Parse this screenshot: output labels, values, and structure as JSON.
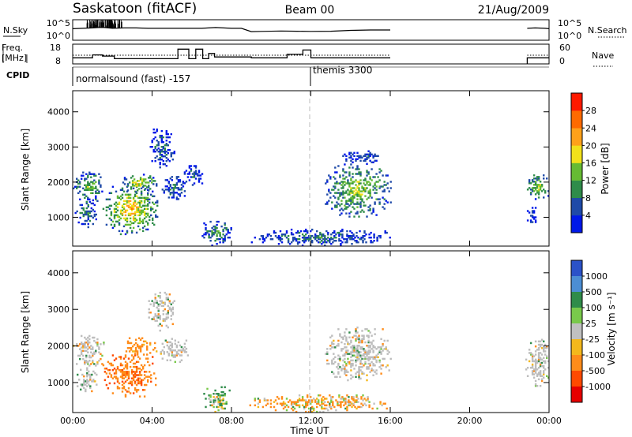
{
  "header": {
    "title": "Saskatoon (fitACF)",
    "beam": "Beam 00",
    "date": "21/Aug/2009"
  },
  "colors": {
    "power_scale": [
      "#0018e8",
      "#1f4aa8",
      "#2f8c4a",
      "#66bb33",
      "#f2e11b",
      "#ffa11a",
      "#ff6a00",
      "#ff1a00"
    ],
    "velocity_scale": [
      "#2b52c8",
      "#4c8ed4",
      "#2f8c4a",
      "#79c94b",
      "#c0c0c0",
      "#f4b81c",
      "#ff8c1a",
      "#ff4a00",
      "#e60000"
    ],
    "ground_scatter": "#bdbdbd"
  },
  "chart_data": [
    {
      "type": "line",
      "panel": "noise",
      "left_label": "N.Sky",
      "left_ticks": [
        "10^5",
        "10^0"
      ],
      "right_label": "N.Search",
      "right_ticks": [
        "10^5",
        "10^0"
      ],
      "xlim": [
        0,
        24
      ],
      "series": [
        {
          "line": "solid",
          "x": [
            0,
            0.5,
            1.0,
            1.5,
            2.0,
            2.6,
            3.2,
            3.8,
            4.4,
            5.0,
            6.0,
            6.5,
            7.2,
            8.0,
            8.5,
            9.0,
            9.5,
            10.5,
            11.3,
            12.0,
            13.0,
            14.0,
            15.0,
            16.0
          ],
          "y": [
            0.56,
            0.58,
            0.6,
            0.63,
            0.58,
            0.6,
            0.6,
            0.58,
            0.58,
            0.58,
            0.58,
            0.58,
            0.62,
            0.58,
            0.58,
            0.42,
            0.43,
            0.45,
            0.44,
            0.43,
            0.44,
            0.48,
            0.5,
            0.5
          ]
        },
        {
          "line": "solid",
          "x": [
            22.9,
            23.3,
            23.8,
            24.0
          ],
          "y": [
            0.58,
            0.6,
            0.58,
            0.56
          ]
        }
      ]
    },
    {
      "type": "line",
      "panel": "frequency",
      "left_label": "Freq. [MHz]",
      "left_ticks": [
        "18",
        "8"
      ],
      "right_label": "Nave",
      "right_ticks": [
        "60",
        "0"
      ],
      "xlim": [
        0,
        24
      ],
      "series": [
        {
          "line": "solid",
          "x": [
            0,
            1.0,
            1.0,
            1.5,
            1.5,
            2.1,
            2.1,
            5.3,
            5.3,
            5.85,
            5.85,
            6.2,
            6.2,
            6.55,
            6.55,
            6.85,
            6.85,
            7.15,
            7.15,
            9.0,
            9.0,
            10.8,
            10.8,
            11.6,
            11.6,
            12.0,
            12.0,
            16.0
          ],
          "y": [
            11.5,
            11.5,
            13.2,
            13.2,
            12.5,
            12.5,
            11.0,
            11.0,
            16.5,
            16.5,
            11.0,
            11.0,
            16.5,
            16.5,
            11.0,
            11.0,
            14.0,
            14.0,
            12.0,
            12.0,
            11.5,
            11.5,
            13.5,
            13.5,
            16.0,
            16.0,
            11.5,
            11.5
          ]
        },
        {
          "line": "solid",
          "x": [
            22.9,
            22.9,
            23.6,
            24.0
          ],
          "y": [
            8,
            11.5,
            11.5,
            11.5
          ]
        },
        {
          "line": "dotted",
          "x": [
            0,
            16.0
          ],
          "y": [
            13.0,
            13.0
          ]
        },
        {
          "line": "dotted",
          "x": [
            22.9,
            24.0
          ],
          "y": [
            13.0,
            13.0
          ]
        }
      ]
    },
    {
      "type": "table",
      "panel": "cpid",
      "label": "CPID",
      "segments": [
        {
          "start": 0,
          "end": 12,
          "label": "normalsound (fast) -157"
        },
        {
          "start": 12,
          "end": 24,
          "label": "themis 3300"
        }
      ]
    },
    {
      "type": "heatmap",
      "panel": "power",
      "ylabel": "Slant Range [km]",
      "ylim": [
        180,
        4600
      ],
      "yticks": [
        1000,
        2000,
        3000,
        4000
      ],
      "xlim": [
        0,
        24
      ],
      "colorbar": {
        "label": "Power [dB]",
        "ticks": [
          4,
          8,
          12,
          16,
          20,
          24,
          28
        ],
        "range": [
          0,
          32
        ]
      },
      "regions": [
        {
          "t0": 0.0,
          "t1": 1.6,
          "r0": 1400,
          "r1": 2300,
          "peak": 14
        },
        {
          "t0": 0.1,
          "t1": 1.2,
          "r0": 700,
          "r1": 1500,
          "peak": 10
        },
        {
          "t0": 1.5,
          "t1": 4.3,
          "r0": 500,
          "r1": 1900,
          "peak": 22
        },
        {
          "t0": 2.5,
          "t1": 4.2,
          "r0": 1700,
          "r1": 2200,
          "peak": 20
        },
        {
          "t0": 3.8,
          "t1": 5.1,
          "r0": 2400,
          "r1": 3500,
          "peak": 8
        },
        {
          "t0": 4.4,
          "t1": 5.8,
          "r0": 1500,
          "r1": 2200,
          "peak": 9
        },
        {
          "t0": 5.6,
          "t1": 6.6,
          "r0": 1900,
          "r1": 2500,
          "peak": 7
        },
        {
          "t0": 6.5,
          "t1": 8.0,
          "r0": 180,
          "r1": 900,
          "peak": 12
        },
        {
          "t0": 8.9,
          "t1": 16.1,
          "r0": 180,
          "r1": 650,
          "peak": 9
        },
        {
          "t0": 12.7,
          "t1": 16.0,
          "r0": 1000,
          "r1": 2500,
          "peak": 17
        },
        {
          "t0": 13.5,
          "t1": 15.6,
          "r0": 2500,
          "r1": 2900,
          "peak": 6
        },
        {
          "t0": 22.8,
          "t1": 24.0,
          "r0": 1500,
          "r1": 2200,
          "peak": 16
        },
        {
          "t0": 22.8,
          "t1": 23.4,
          "r0": 800,
          "r1": 1300,
          "peak": 6
        }
      ]
    },
    {
      "type": "heatmap",
      "panel": "velocity",
      "ylabel": "Slant Range [km]",
      "ylim": [
        180,
        4600
      ],
      "yticks": [
        1000,
        2000,
        3000,
        4000
      ],
      "xlim": [
        0,
        24
      ],
      "x": [
        "00:00",
        "04:00",
        "08:00",
        "12:00",
        "16:00",
        "20:00",
        "00:00"
      ],
      "xlabel": "Time UT",
      "colorbar": {
        "label": "Velocity [m s⁻¹]",
        "ticks": [
          1000,
          500,
          100,
          25,
          -25,
          -100,
          -500,
          -1000
        ]
      },
      "regions": [
        {
          "t0": 0.0,
          "t1": 1.6,
          "r0": 1400,
          "r1": 2300,
          "v": 0
        },
        {
          "t0": 0.2,
          "t1": 1.2,
          "r0": 700,
          "r1": 1400,
          "v": 0
        },
        {
          "t0": 1.5,
          "t1": 4.2,
          "r0": 600,
          "r1": 1800,
          "v": -250
        },
        {
          "t0": 2.5,
          "t1": 4.2,
          "r0": 1700,
          "r1": 2200,
          "v": -150
        },
        {
          "t0": 3.8,
          "t1": 5.1,
          "r0": 2400,
          "r1": 3500,
          "v": 0
        },
        {
          "t0": 4.4,
          "t1": 5.8,
          "r0": 1500,
          "r1": 2200,
          "v": 0
        },
        {
          "t0": 6.5,
          "t1": 8.0,
          "r0": 180,
          "r1": 900,
          "v": 60
        },
        {
          "t0": 8.9,
          "t1": 16.1,
          "r0": 180,
          "r1": 650,
          "v": -60
        },
        {
          "t0": 12.7,
          "t1": 16.0,
          "r0": 1000,
          "r1": 2500,
          "v": 0
        },
        {
          "t0": 22.8,
          "t1": 24.0,
          "r0": 800,
          "r1": 2200,
          "v": 0
        }
      ]
    }
  ]
}
